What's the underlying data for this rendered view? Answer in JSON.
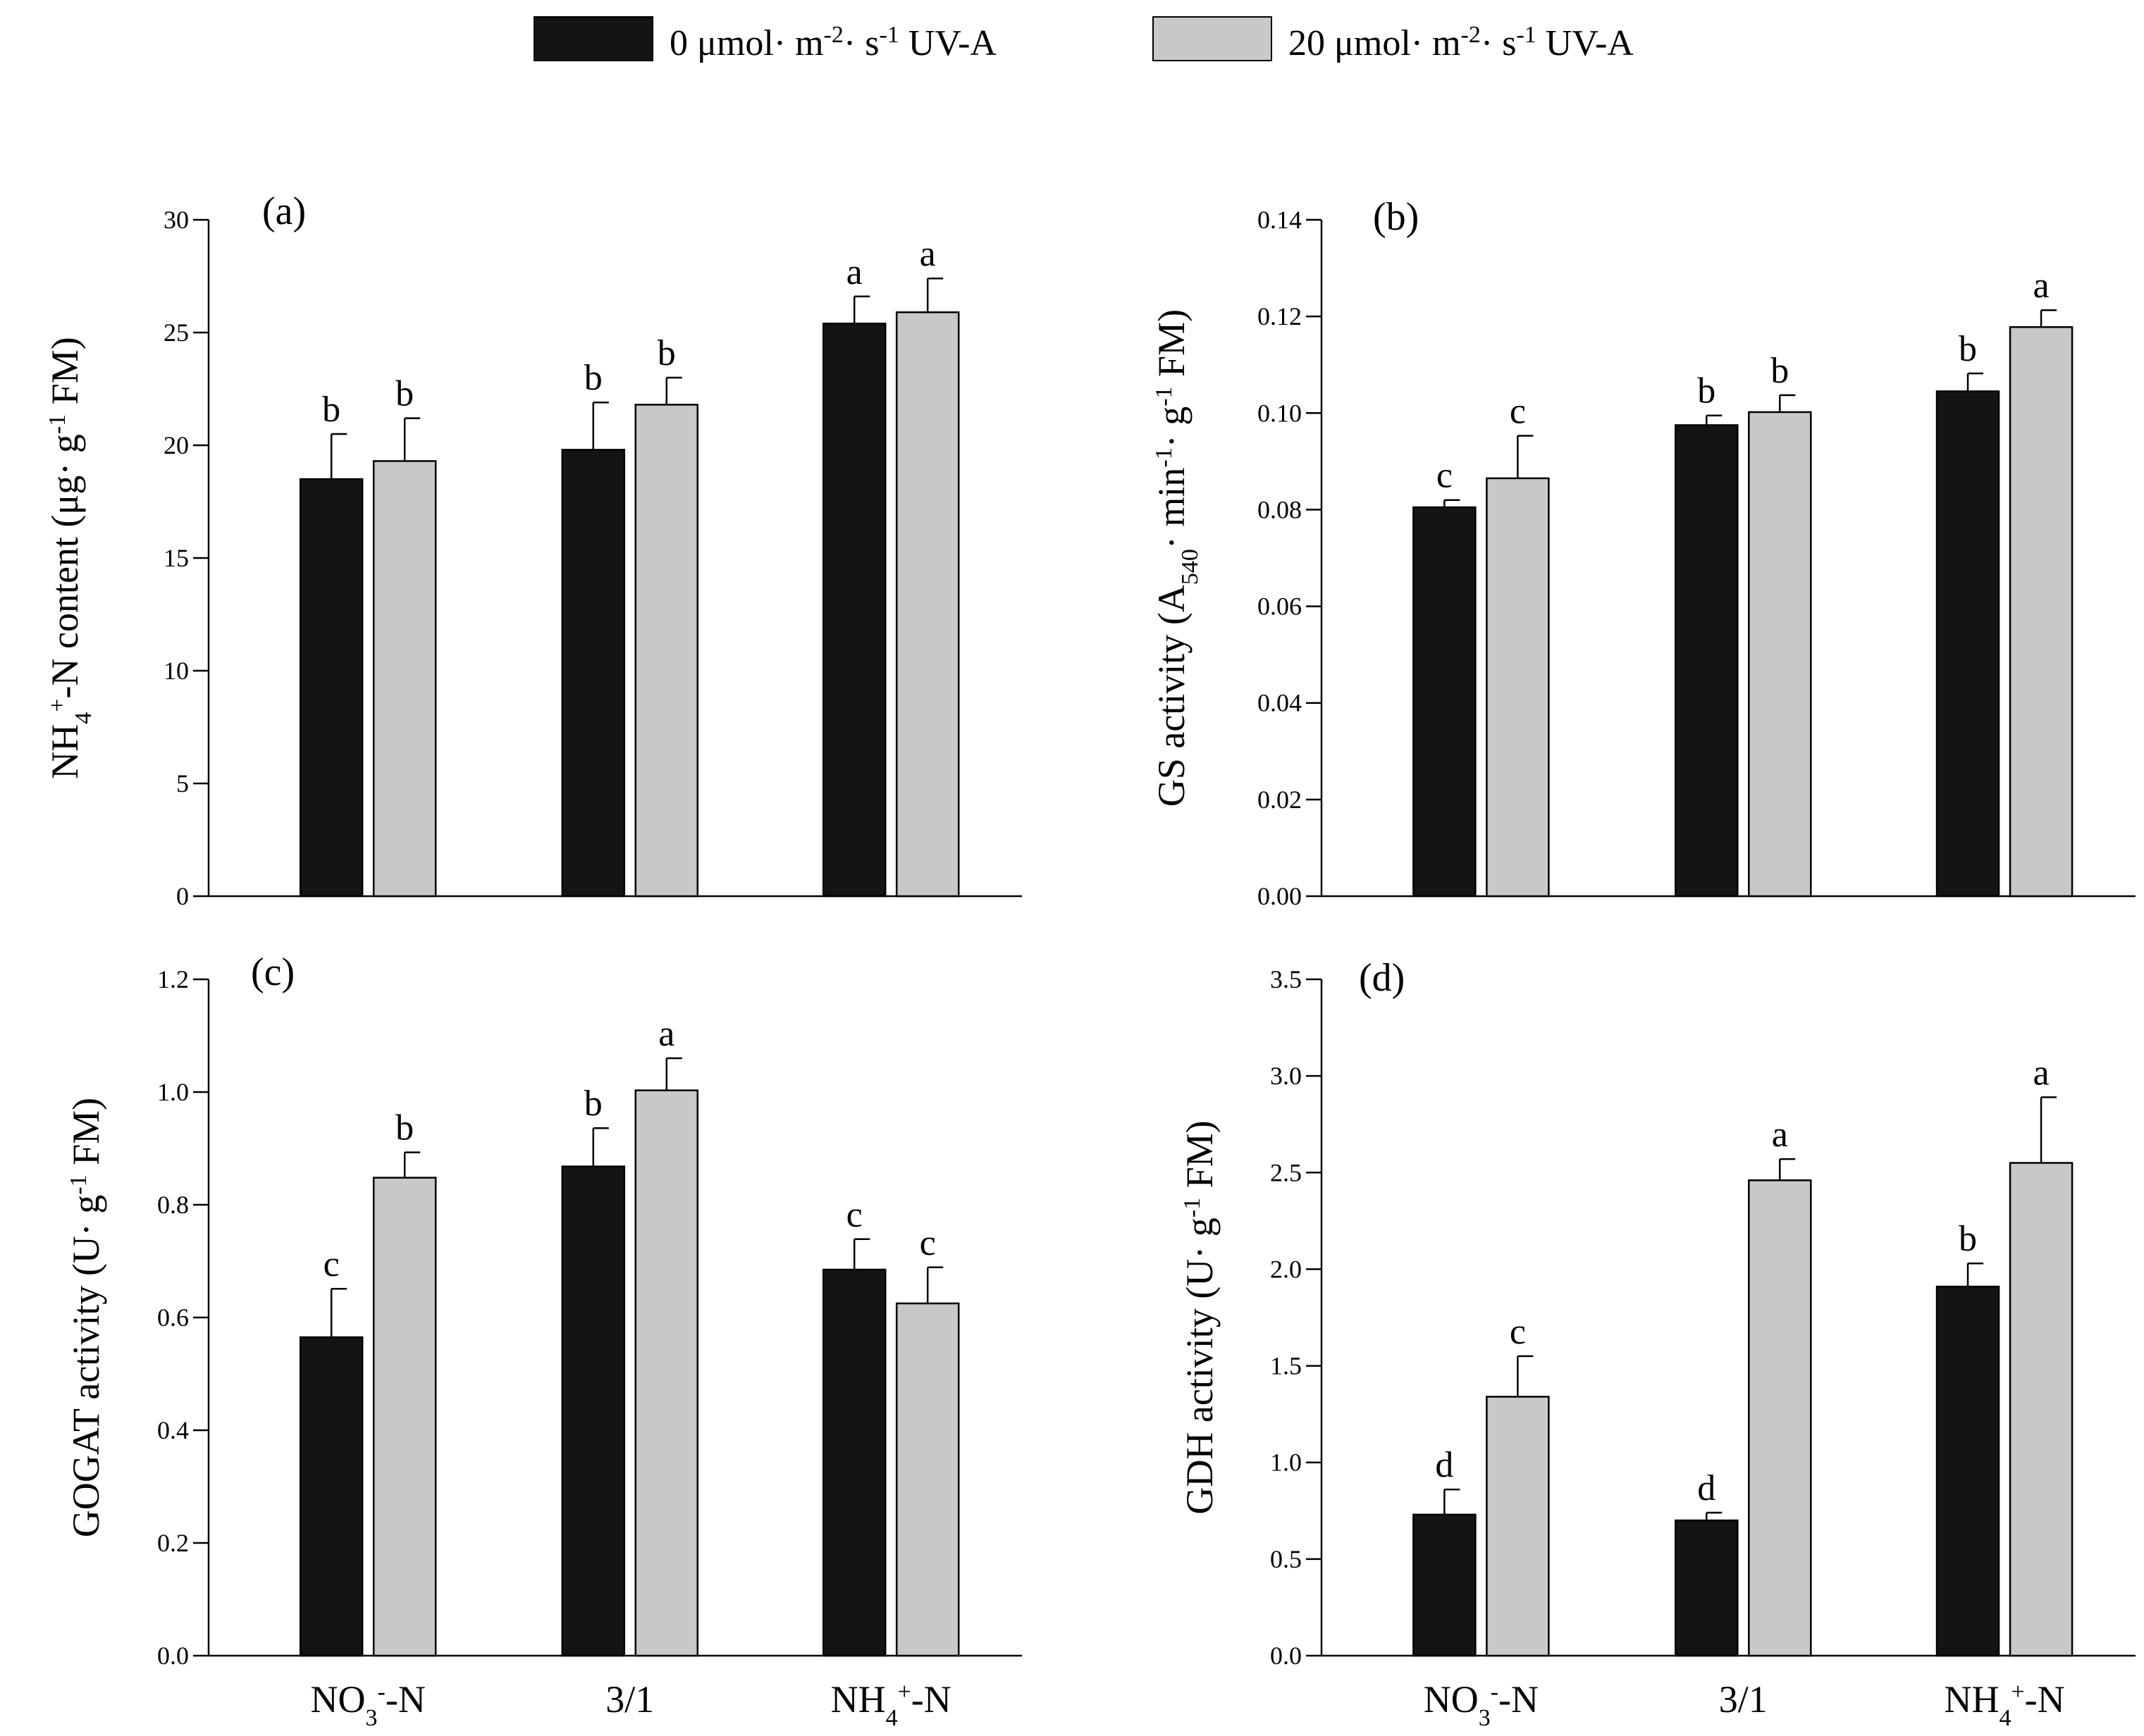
{
  "legend": {
    "items": [
      {
        "pre": "0 μmol· m",
        "sup1": "-2",
        "mid": "· s",
        "sup2": "-1",
        "post": " UV-A",
        "color": "#141414"
      },
      {
        "pre": "20 μmol· m",
        "sup1": "-2",
        "mid": "· s",
        "sup2": "-1",
        "post": " UV-A",
        "color": "#c8c8c8"
      }
    ]
  },
  "colors": {
    "dark": "#141414",
    "light": "#c8c8c8",
    "axis": "#000000"
  },
  "x_categories": [
    {
      "main": "NO",
      "sub": "3",
      "sup": "-",
      "post": "-N"
    },
    {
      "main": "3/1",
      "sub": "",
      "sup": "",
      "post": ""
    },
    {
      "main": "NH",
      "sub": "4",
      "sup": "+",
      "post": "-N"
    }
  ],
  "chart_data": [
    {
      "panel": "(a)",
      "type": "bar",
      "categories": [
        "NO3--N",
        "3/1",
        "NH4+-N"
      ],
      "ylabel_parts": [
        {
          "t": "NH"
        },
        {
          "t": "4",
          "k": "sub"
        },
        {
          "t": "+",
          "k": "sup"
        },
        {
          "t": "-N content (μg· g"
        },
        {
          "t": "-1",
          "k": "sup"
        },
        {
          "t": " FM)"
        }
      ],
      "ylim": [
        0,
        30
      ],
      "yticks": [
        "0",
        "5",
        "10",
        "15",
        "20",
        "25",
        "30"
      ],
      "series": [
        {
          "name": "0 μmol· m-2· s-1 UV-A",
          "values": [
            18.5,
            19.8,
            25.4
          ],
          "errors": [
            2.0,
            2.1,
            1.2
          ],
          "letters": [
            "b",
            "b",
            "a"
          ]
        },
        {
          "name": "20 μmol· m-2· s-1 UV-A",
          "values": [
            19.3,
            21.8,
            25.9
          ],
          "errors": [
            1.9,
            1.2,
            1.5
          ],
          "letters": [
            "b",
            "b",
            "a"
          ]
        }
      ]
    },
    {
      "panel": "(b)",
      "type": "bar",
      "categories": [
        "NO3--N",
        "3/1",
        "NH4+-N"
      ],
      "ylabel_parts": [
        {
          "t": "GS activity (A"
        },
        {
          "t": "540",
          "k": "sub"
        },
        {
          "t": "· min"
        },
        {
          "t": "-1",
          "k": "sup"
        },
        {
          "t": "· g"
        },
        {
          "t": "-1",
          "k": "sup"
        },
        {
          "t": " FM)"
        }
      ],
      "ylim": [
        0,
        0.14
      ],
      "yticks": [
        "0.00",
        "0.02",
        "0.04",
        "0.06",
        "0.08",
        "0.10",
        "0.12",
        "0.14"
      ],
      "series": [
        {
          "name": "0 μmol· m-2· s-1 UV-A",
          "values": [
            0.0805,
            0.0975,
            0.1045
          ],
          "errors": [
            0.0015,
            0.002,
            0.0037
          ],
          "letters": [
            "c",
            "b",
            "b"
          ]
        },
        {
          "name": "20 μmol· m-2· s-1 UV-A",
          "values": [
            0.0865,
            0.1002,
            0.1178
          ],
          "errors": [
            0.0088,
            0.0035,
            0.0035
          ],
          "letters": [
            "c",
            "b",
            "a"
          ]
        }
      ]
    },
    {
      "panel": "(c)",
      "type": "bar",
      "categories": [
        "NO3--N",
        "3/1",
        "NH4+-N"
      ],
      "ylabel_parts": [
        {
          "t": "GOGAT activity (U· g"
        },
        {
          "t": "-1",
          "k": "sup"
        },
        {
          "t": " FM)"
        }
      ],
      "ylim": [
        0,
        1.2
      ],
      "yticks": [
        "0.0",
        "0.2",
        "0.4",
        "0.6",
        "0.8",
        "1.0",
        "1.2"
      ],
      "series": [
        {
          "name": "0 μmol· m-2· s-1 UV-A",
          "values": [
            0.565,
            0.868,
            0.685
          ],
          "errors": [
            0.086,
            0.068,
            0.054
          ],
          "letters": [
            "c",
            "b",
            "c"
          ]
        },
        {
          "name": "20 μmol· m-2· s-1 UV-A",
          "values": [
            0.848,
            1.003,
            0.625
          ],
          "errors": [
            0.045,
            0.057,
            0.064
          ],
          "letters": [
            "b",
            "a",
            "c"
          ]
        }
      ]
    },
    {
      "panel": "(d)",
      "type": "bar",
      "categories": [
        "NO3--N",
        "3/1",
        "NH4+-N"
      ],
      "ylabel_parts": [
        {
          "t": "GDH activity (U· g"
        },
        {
          "t": "-1",
          "k": "sup"
        },
        {
          "t": " FM)"
        }
      ],
      "ylim": [
        0,
        3.5
      ],
      "yticks": [
        "0.0",
        "0.5",
        "1.0",
        "1.5",
        "2.0",
        "2.5",
        "3.0",
        "3.5"
      ],
      "series": [
        {
          "name": "0 μmol· m-2· s-1 UV-A",
          "values": [
            0.73,
            0.7,
            1.91
          ],
          "errors": [
            0.13,
            0.04,
            0.12
          ],
          "letters": [
            "d",
            "d",
            "b"
          ]
        },
        {
          "name": "20 μmol· m-2· s-1 UV-A",
          "values": [
            1.34,
            2.46,
            2.55
          ],
          "errors": [
            0.21,
            0.11,
            0.34
          ],
          "letters": [
            "c",
            "a",
            "a"
          ]
        }
      ]
    }
  ]
}
